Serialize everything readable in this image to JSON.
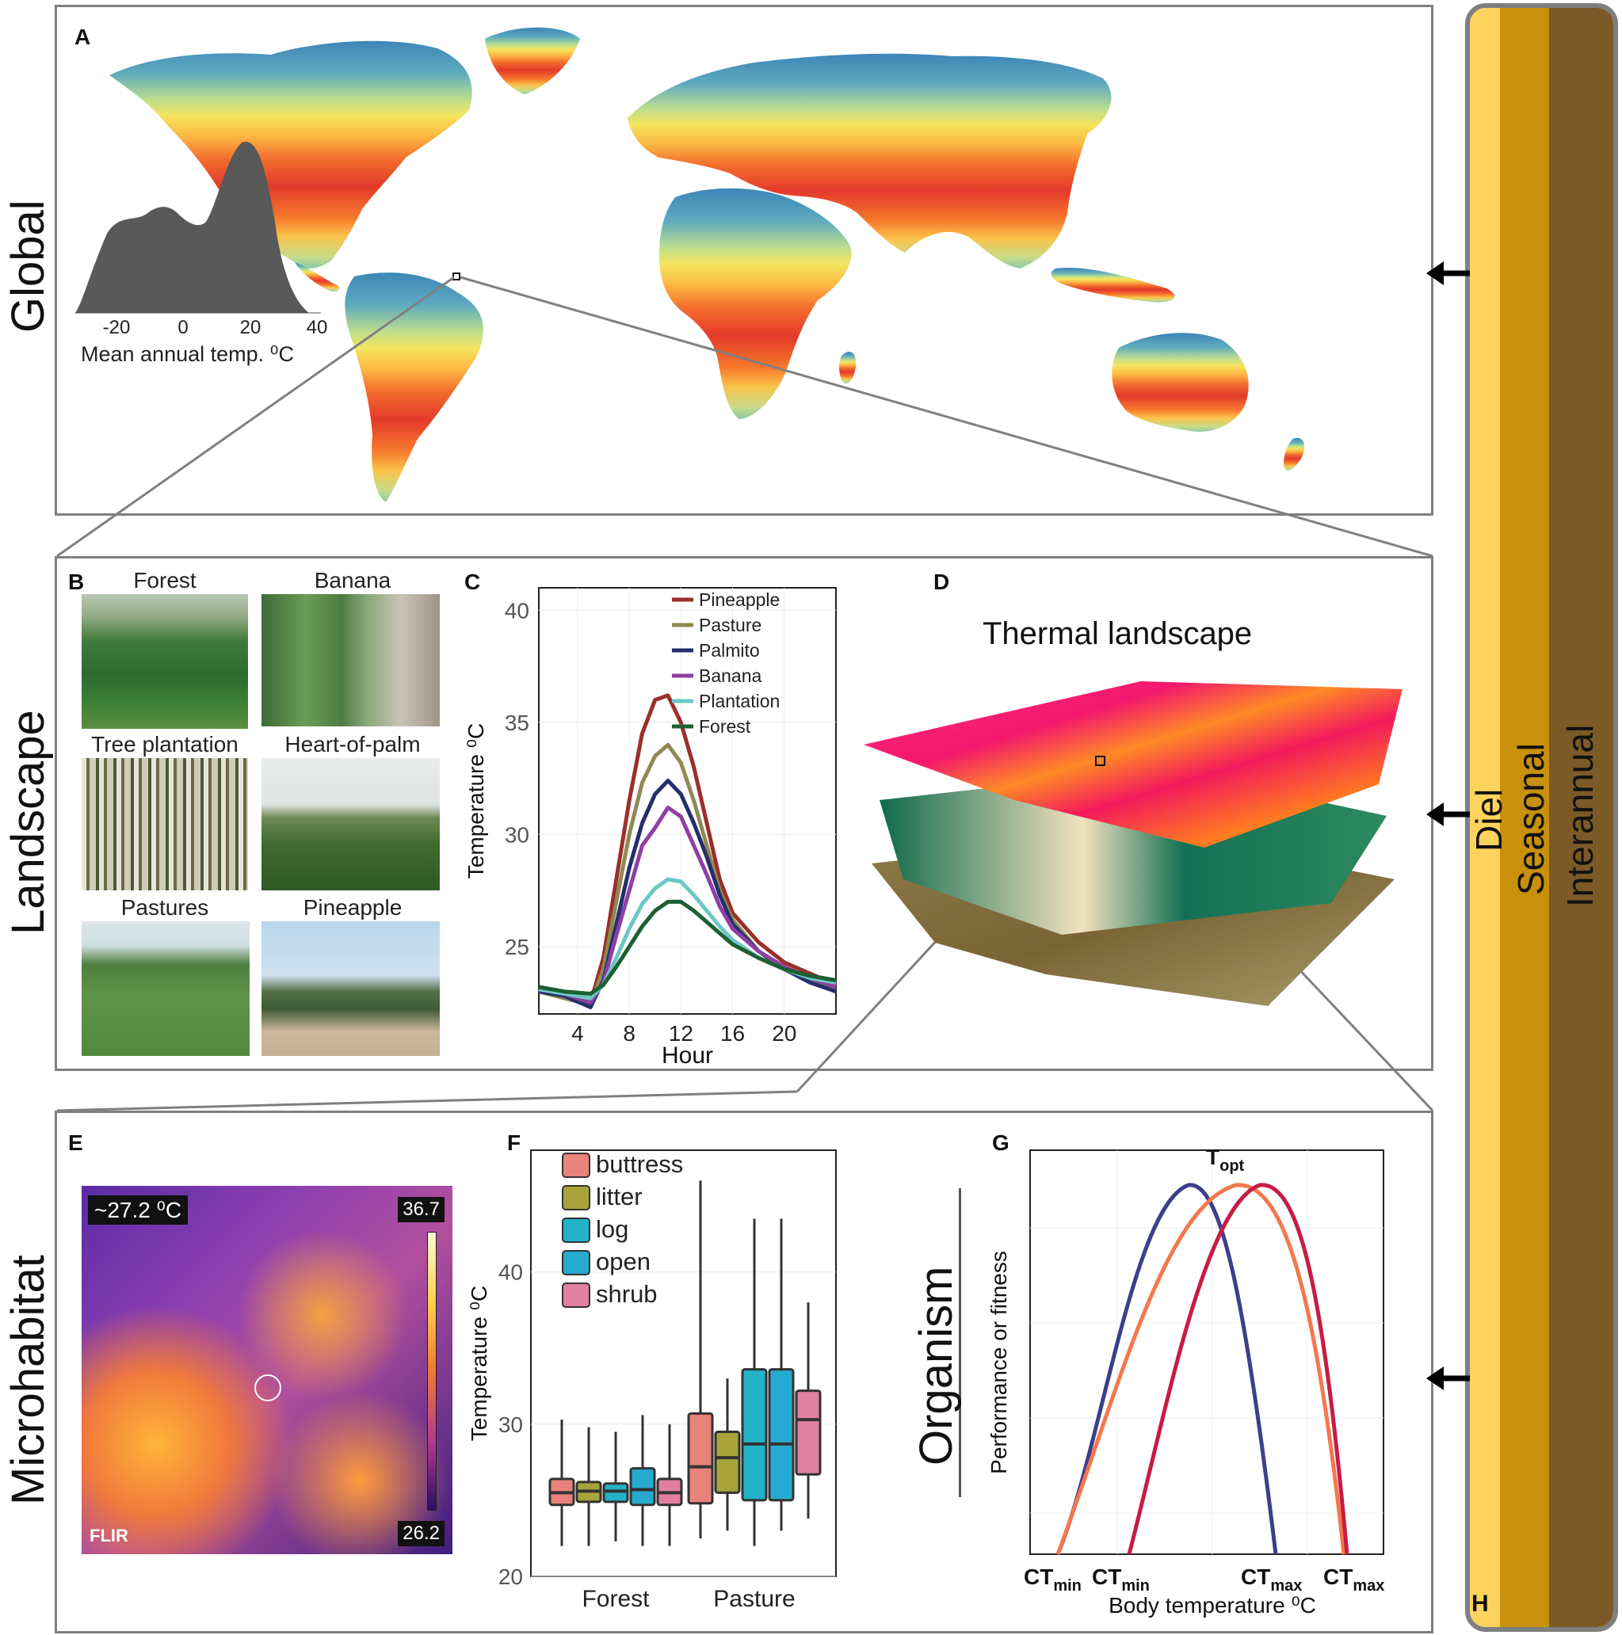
{
  "row_labels": {
    "global": "Global",
    "landscape": "Landscape",
    "microhabitat": "Microhabitat"
  },
  "panel_letters": {
    "a": "A",
    "b": "B",
    "c": "C",
    "d": "D",
    "e": "E",
    "f": "F",
    "g": "G",
    "h": "H"
  },
  "panel_a": {
    "density_xlabel": "Mean annual temp. ⁰C",
    "density_ticks": [
      "-20",
      "0",
      "20",
      "40"
    ]
  },
  "panel_b": {
    "photos": [
      {
        "label": "Forest"
      },
      {
        "label": "Banana"
      },
      {
        "label": "Tree plantation"
      },
      {
        "label": "Heart-of-palm"
      },
      {
        "label": "Pastures"
      },
      {
        "label": "Pineapple"
      }
    ]
  },
  "panel_c": {
    "chart_data": {
      "type": "line",
      "xlabel": "Hour",
      "ylabel": "Temperature ⁰C",
      "xlim": [
        1,
        24
      ],
      "ylim": [
        22,
        41
      ],
      "xticks": [
        4,
        8,
        12,
        16,
        20
      ],
      "yticks": [
        25,
        30,
        35,
        40
      ],
      "legend_position": "top-right",
      "x": [
        1,
        3,
        5,
        6,
        7,
        8,
        9,
        10,
        11,
        12,
        13,
        14,
        15,
        16,
        18,
        20,
        22,
        24
      ],
      "series": [
        {
          "name": "Pineapple",
          "color": "#9b2f2a",
          "values": [
            23.0,
            22.8,
            22.5,
            24.5,
            28.0,
            31.5,
            34.5,
            36.0,
            36.2,
            35.0,
            33.0,
            30.5,
            28.0,
            26.5,
            25.2,
            24.3,
            23.8,
            23.3
          ]
        },
        {
          "name": "Pasture",
          "color": "#8f8a52",
          "values": [
            23.0,
            22.7,
            22.4,
            24.0,
            27.0,
            30.0,
            32.3,
            33.5,
            34.0,
            33.2,
            31.5,
            29.5,
            27.5,
            26.2,
            24.8,
            24.0,
            23.5,
            23.0
          ]
        },
        {
          "name": "Palmito",
          "color": "#242f6b",
          "values": [
            23.0,
            22.8,
            22.3,
            23.5,
            26.0,
            28.5,
            30.5,
            31.8,
            32.4,
            31.8,
            30.5,
            29.0,
            27.3,
            26.0,
            24.8,
            24.0,
            23.4,
            23.0
          ]
        },
        {
          "name": "Banana",
          "color": "#8e3fa4",
          "values": [
            23.2,
            22.9,
            22.5,
            23.4,
            25.5,
            27.5,
            29.5,
            30.3,
            31.2,
            30.8,
            29.5,
            28.2,
            26.8,
            25.8,
            24.8,
            24.1,
            23.6,
            23.2
          ]
        },
        {
          "name": "Plantation",
          "color": "#6cc7c5",
          "values": [
            23.1,
            22.9,
            22.7,
            23.3,
            24.5,
            25.8,
            26.9,
            27.6,
            28.0,
            27.9,
            27.3,
            26.6,
            25.9,
            25.3,
            24.5,
            24.0,
            23.6,
            23.4
          ]
        },
        {
          "name": "Forest",
          "color": "#1d5f32",
          "values": [
            23.2,
            23.0,
            22.9,
            23.3,
            24.1,
            25.0,
            25.9,
            26.6,
            27.0,
            27.0,
            26.6,
            26.1,
            25.6,
            25.1,
            24.5,
            24.0,
            23.7,
            23.5
          ]
        }
      ]
    }
  },
  "panel_d": {
    "title": "Thermal landscape"
  },
  "panel_e": {
    "readout": "~27.2 ⁰C",
    "scale_max": "36.7",
    "scale_min": "26.2",
    "brand": "FLIR"
  },
  "panel_f": {
    "chart_data": {
      "type": "box",
      "ylabel": "Temperature ⁰C",
      "ylim": [
        20,
        48
      ],
      "yticks": [
        20,
        30,
        40
      ],
      "groups": [
        "Forest",
        "Pasture"
      ],
      "legend_position": "top-left",
      "series": [
        {
          "name": "buttress",
          "color": "#e8827a",
          "forest": [
            22,
            24.7,
            25.5,
            26.4,
            30.3
          ],
          "pasture": [
            22.5,
            24.8,
            27.2,
            30.7,
            46
          ]
        },
        {
          "name": "litter",
          "color": "#a8a43a",
          "forest": [
            22,
            24.9,
            25.6,
            26.2,
            29.8
          ],
          "pasture": [
            23,
            25.5,
            27.8,
            29.5,
            33
          ]
        },
        {
          "name": "log",
          "color": "#22b3c8",
          "forest": [
            22.3,
            24.9,
            25.6,
            26.1,
            29.5
          ],
          "pasture": [
            22,
            25.0,
            28.7,
            33.6,
            43.5
          ]
        },
        {
          "name": "open",
          "color": "#27aad0",
          "forest": [
            22,
            24.7,
            25.7,
            27.1,
            30.6
          ],
          "pasture": [
            23,
            25.0,
            28.7,
            33.6,
            43.5
          ]
        },
        {
          "name": "shrub",
          "color": "#e07fa0",
          "forest": [
            22,
            24.7,
            25.5,
            26.4,
            30
          ],
          "pasture": [
            23.8,
            26.7,
            30.3,
            32.2,
            38
          ]
        }
      ]
    }
  },
  "panel_g": {
    "ylabel": "Performance or fitness",
    "xlabel": "Body temperature ⁰C",
    "row_label": "Organism",
    "topt": {
      "main": "T",
      "sub": "opt"
    },
    "ct_labels": [
      {
        "main": "CT",
        "sub": "min"
      },
      {
        "main": "CT",
        "sub": "min"
      },
      {
        "main": "CT",
        "sub": "max"
      },
      {
        "main": "CT",
        "sub": "max"
      }
    ],
    "curve_colors": [
      "#3e3f8a",
      "#f4784d",
      "#c71c44"
    ]
  },
  "panel_h": {
    "bands": [
      {
        "label": "Diel",
        "color": "#fdd35d"
      },
      {
        "label": "Seasonal",
        "color": "#c8900b"
      },
      {
        "label": "Interannual",
        "color": "#7b5a27"
      }
    ]
  }
}
